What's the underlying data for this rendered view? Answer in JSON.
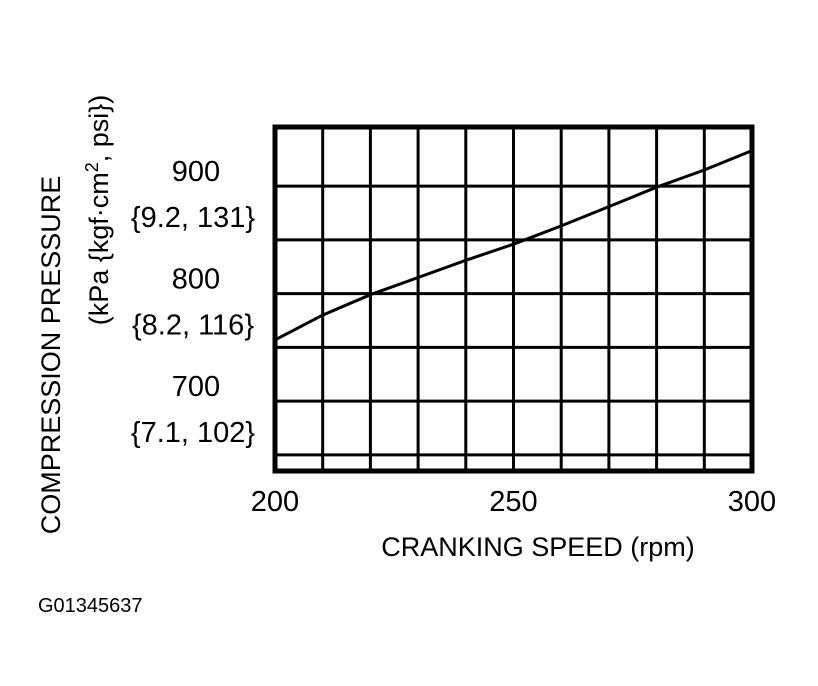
{
  "figure_id": "G01345637",
  "chart_data": {
    "type": "line",
    "xlabel": "CRANKING SPEED (rpm)",
    "ylabel_line1": "COMPRESSION PRESSURE",
    "ylabel_line2_prefix": "(kPa {kgf·cm",
    "ylabel_line2_sup": "2",
    "ylabel_line2_suffix": ", psi})",
    "xlim": [
      200,
      300
    ],
    "ylim": [
      635,
      955
    ],
    "x_ticks": [
      {
        "value": 200,
        "label": "200"
      },
      {
        "value": 250,
        "label": "250"
      },
      {
        "value": 300,
        "label": "300"
      }
    ],
    "y_ticks": [
      {
        "value": 900,
        "label": "900",
        "sublabel": "{9.2, 131}"
      },
      {
        "value": 800,
        "label": "800",
        "sublabel": "{8.2, 116}"
      },
      {
        "value": 700,
        "label": "700",
        "sublabel": "{7.1, 102}"
      }
    ],
    "grid": true,
    "x_gridlines": [
      210,
      220,
      230,
      240,
      250,
      260,
      270,
      280,
      290
    ],
    "y_gridlines": [
      650,
      700,
      750,
      800,
      850,
      900
    ],
    "series": [
      {
        "x": [
          200,
          210,
          220,
          230,
          240,
          250,
          260,
          270,
          280,
          290,
          300
        ],
        "y": [
          757,
          780,
          799,
          815,
          831,
          846,
          863,
          881,
          899,
          915,
          933
        ]
      }
    ]
  }
}
